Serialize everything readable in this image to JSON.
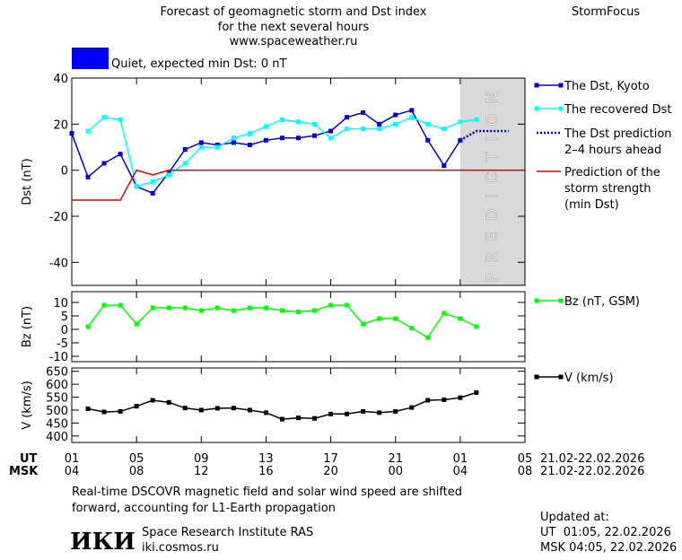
{
  "header": {
    "title": [
      "Forecast of geomagnetic storm and Dst index",
      "for the next several hours",
      "www.spaceweather.ru"
    ],
    "brand": "StormFocus",
    "status": "Quiet, expected min Dst: 0 nT",
    "status_color": "#0000ff"
  },
  "x_axis": {
    "ut_name": "UT",
    "msk_name": "MSK",
    "xticks": [
      {
        "value": 0,
        "label": "01"
      },
      {
        "value": 4,
        "label": "05"
      },
      {
        "value": 8,
        "label": "09"
      },
      {
        "value": 12,
        "label": "13"
      },
      {
        "value": 16,
        "label": "17"
      },
      {
        "value": 20,
        "label": "21"
      },
      {
        "value": 24,
        "label": "01"
      },
      {
        "value": 28,
        "label": "05"
      }
    ],
    "xticks_msk": [
      {
        "value": 0,
        "label": "04"
      },
      {
        "value": 4,
        "label": "08"
      },
      {
        "value": 8,
        "label": "12"
      },
      {
        "value": 12,
        "label": "16"
      },
      {
        "value": 16,
        "label": "20"
      },
      {
        "value": 20,
        "label": "00"
      },
      {
        "value": 24,
        "label": "04"
      },
      {
        "value": 28,
        "label": "08"
      }
    ],
    "ut_dates": "21.02-22.02.2026",
    "msk_dates": "21.02-22.02.2026"
  },
  "chart_data": [
    {
      "type": "line",
      "ylabel": "Dst (nT)",
      "xlim": [
        0,
        28
      ],
      "ylim": [
        -50,
        40
      ],
      "yticks": [
        -40,
        -20,
        0,
        20,
        40
      ],
      "prediction_label": "PREDICTION",
      "prediction_xlim": [
        24,
        28
      ],
      "prediction_color": "#d9d9d9",
      "series": [
        {
          "name": "The Dst, Kyoto",
          "color": "#0000d0",
          "marker": "square",
          "dash": "solid",
          "x": [
            0,
            1,
            2,
            3,
            4,
            5,
            6,
            7,
            8,
            9,
            10,
            11,
            12,
            13,
            14,
            15,
            16,
            17,
            18,
            19,
            20,
            21,
            22,
            23,
            24
          ],
          "values": [
            16,
            -3,
            3,
            7,
            -7,
            -10,
            -1,
            9,
            12,
            11,
            12,
            11,
            13,
            14,
            14,
            15,
            17,
            23,
            25,
            20,
            24,
            26,
            13,
            2,
            13
          ]
        },
        {
          "name": "The recovered Dst",
          "color": "#00ffff",
          "marker": "square",
          "dash": "solid",
          "x": [
            1,
            2,
            3,
            4,
            5,
            6,
            7,
            8,
            9,
            10,
            11,
            12,
            13,
            14,
            15,
            16,
            17,
            18,
            19,
            20,
            21,
            22,
            23,
            24,
            25
          ],
          "values": [
            17,
            23,
            22,
            -7,
            -5,
            -2,
            3,
            10,
            10,
            14,
            16,
            19,
            22,
            21,
            20,
            14,
            18,
            18,
            18,
            20,
            23,
            20,
            18,
            21,
            22
          ]
        },
        {
          "name": "The Dst prediction\n2–4 hours ahead",
          "color": "#0000d0",
          "marker": "none",
          "dash": "dotted",
          "x": [
            24,
            25,
            26,
            27
          ],
          "values": [
            13,
            17,
            17,
            17
          ]
        },
        {
          "name": "Prediction of the\nstorm strength\n(min Dst)",
          "color": "#e00000",
          "marker": "none",
          "dash": "solid",
          "x": [
            0,
            3,
            4,
            5,
            6,
            28
          ],
          "values": [
            -13,
            -13,
            0,
            -2,
            0,
            0
          ]
        }
      ]
    },
    {
      "type": "line",
      "ylabel": "Bz (nT)",
      "xlim": [
        0,
        28
      ],
      "ylim": [
        -12,
        14
      ],
      "yticks": [
        -10,
        -5,
        0,
        5,
        10
      ],
      "series": [
        {
          "name": "Bz (nT, GSM)",
          "color": "#00ff00",
          "marker": "square",
          "dash": "solid",
          "x": [
            1,
            2,
            3,
            4,
            5,
            6,
            7,
            8,
            9,
            10,
            11,
            12,
            13,
            14,
            15,
            16,
            17,
            18,
            19,
            20,
            21,
            22,
            23,
            24,
            25
          ],
          "values": [
            1,
            9,
            9,
            2,
            8,
            8,
            8,
            7,
            8,
            7,
            8,
            8,
            7,
            6.5,
            7,
            9,
            9,
            2,
            4,
            4,
            0.5,
            -3,
            6,
            4,
            1
          ]
        }
      ]
    },
    {
      "type": "line",
      "ylabel": "V (km/s)",
      "xlim": [
        0,
        28
      ],
      "ylim": [
        375,
        663
      ],
      "yticks": [
        400,
        450,
        500,
        550,
        600,
        650
      ],
      "series": [
        {
          "name": "V (km/s)",
          "color": "#000000",
          "marker": "square",
          "dash": "solid",
          "x": [
            1,
            2,
            3,
            4,
            5,
            6,
            7,
            8,
            9,
            10,
            11,
            12,
            13,
            14,
            15,
            16,
            17,
            18,
            19,
            20,
            21,
            22,
            23,
            24,
            25
          ],
          "values": [
            505,
            493,
            495,
            515,
            538,
            530,
            508,
            500,
            507,
            508,
            500,
            490,
            465,
            470,
            468,
            485,
            485,
            495,
            490,
            495,
            510,
            538,
            540,
            548,
            568
          ]
        }
      ]
    }
  ],
  "footer": {
    "note": [
      "Real-time DSCOVR magnetic field and solar wind speed are shifted",
      "forward, accounting for L1-Earth propagation"
    ],
    "logo": "ИКИ",
    "institute": "Space Research Institute RAS",
    "url": "iki.cosmos.ru",
    "updated_title": "Updated at:",
    "updated_ut": "UT  01:05, 22.02.2026",
    "updated_msk": "MSK 04:05, 22.02.2026"
  }
}
